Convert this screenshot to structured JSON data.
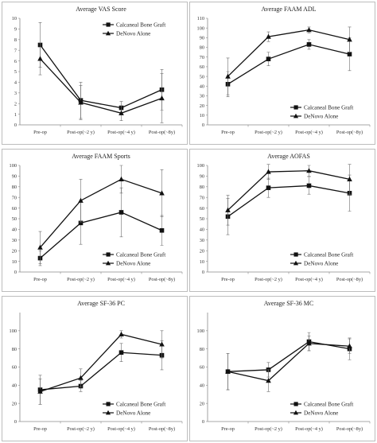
{
  "chart_data": [
    {
      "type": "line",
      "title": "Average VAS Score",
      "categories": [
        "Pre-op",
        "Post-op(~2 y)",
        "Post-op(~4 y)",
        "Post-op(~8y)"
      ],
      "ylim": [
        0,
        10
      ],
      "yticks": [
        0,
        1,
        2,
        3,
        4,
        5,
        6,
        7,
        8,
        9,
        10
      ],
      "legend_position": "top-right",
      "series": [
        {
          "name": "Calcaneal Bone Graft",
          "marker": "square",
          "values": [
            7.5,
            2.3,
            1.6,
            3.3
          ],
          "err": [
            2.1,
            1.7,
            0.6,
            1.9
          ]
        },
        {
          "name": "DeNovo Alone",
          "marker": "triangle",
          "values": [
            6.2,
            2.1,
            1.1,
            2.5
          ],
          "err": [
            1.5,
            1.6,
            0.7,
            2.3
          ]
        }
      ]
    },
    {
      "type": "line",
      "title": "Average FAAM ADL",
      "categories": [
        "Pre-op",
        "Post-op(~2 y)",
        "Post-op(~4 y)",
        "Post-op(~8y)"
      ],
      "ylim": [
        0,
        110
      ],
      "yticks": [
        0,
        10,
        20,
        30,
        40,
        50,
        60,
        70,
        80,
        90,
        100,
        110
      ],
      "legend_position": "bottom-right",
      "series": [
        {
          "name": "Calcaneal Bone Graft",
          "marker": "square",
          "values": [
            42,
            68,
            83,
            73
          ],
          "err": [
            13,
            7,
            5,
            17
          ]
        },
        {
          "name": "DeNovo Alone",
          "marker": "triangle",
          "values": [
            50,
            91,
            98,
            88
          ],
          "err": [
            19,
            5,
            3,
            13
          ]
        }
      ]
    },
    {
      "type": "line",
      "title": "Average FAAM Sports",
      "categories": [
        "Pre-op",
        "Post-op(~2 y)",
        "Post-op(~4 y)",
        "Post-op(~8y)"
      ],
      "ylim": [
        0,
        100
      ],
      "yticks": [
        0,
        10,
        20,
        30,
        40,
        50,
        60,
        70,
        80,
        90,
        100
      ],
      "legend_position": "bottom-right",
      "series": [
        {
          "name": "Calcaneal Bone Graft",
          "marker": "square",
          "values": [
            13,
            46,
            56,
            39
          ],
          "err": [
            7,
            20,
            23,
            14
          ]
        },
        {
          "name": "DeNovo Alone",
          "marker": "triangle",
          "values": [
            23,
            67,
            87,
            74
          ],
          "err": [
            15,
            20,
            13,
            22
          ]
        }
      ]
    },
    {
      "type": "line",
      "title": "Average AOFAS",
      "categories": [
        "Pre-op",
        "Post-op(~2 y)",
        "Post-op(~4 y)",
        "Post-op(~8y)"
      ],
      "ylim": [
        0,
        100
      ],
      "yticks": [
        0,
        10,
        20,
        30,
        40,
        50,
        60,
        70,
        80,
        90,
        100
      ],
      "legend_position": "bottom-right",
      "series": [
        {
          "name": "Calcaneal Bone Graft",
          "marker": "square",
          "values": [
            52,
            79,
            81,
            74
          ],
          "err": [
            17,
            9,
            8,
            17
          ]
        },
        {
          "name": "DeNovo Alone",
          "marker": "triangle",
          "values": [
            58,
            94,
            95,
            87
          ],
          "err": [
            14,
            7,
            5,
            14
          ]
        }
      ]
    },
    {
      "type": "line",
      "title": "Average SF-36 PC",
      "categories": [
        "Pre-op",
        "Post-op(~2 y)",
        "Post-op(~4 y)",
        "Post-op(~8y)"
      ],
      "ylim": [
        0,
        120
      ],
      "yticks": [
        0,
        20,
        40,
        60,
        80,
        100
      ],
      "legend_position": "bottom-right",
      "series": [
        {
          "name": "Calcaneal Bone Graft",
          "marker": "square",
          "values": [
            35,
            39,
            76,
            73
          ],
          "err": [
            16,
            6,
            10,
            16
          ]
        },
        {
          "name": "DeNovo Alone",
          "marker": "triangle",
          "values": [
            33,
            48,
            96,
            85
          ],
          "err": [
            14,
            10,
            4,
            15
          ]
        }
      ]
    },
    {
      "type": "line",
      "title": "Average SF-36 MC",
      "categories": [
        "Pre-op",
        "Post-op(~2 y)",
        "Post-op(~4 y)",
        "Post-op(~8y)"
      ],
      "ylim": [
        0,
        120
      ],
      "yticks": [
        0,
        20,
        40,
        60,
        80,
        100
      ],
      "legend_position": "bottom-right",
      "series": [
        {
          "name": "Calcaneal Bone Graft",
          "marker": "square",
          "values": [
            55,
            57,
            88,
            80
          ],
          "err": [
            20,
            8,
            10,
            12
          ]
        },
        {
          "name": "DeNovo Alone",
          "marker": "triangle",
          "values": [
            55,
            45,
            86,
            83
          ],
          "err": [
            20,
            12,
            8,
            8
          ]
        }
      ]
    }
  ]
}
